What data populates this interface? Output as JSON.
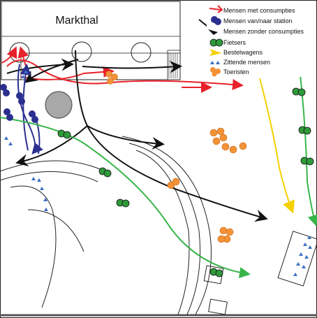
{
  "diagram": {
    "building_label": "Markthal",
    "legend": [
      {
        "key": "consumpties",
        "label": "Mensen met consumpties",
        "color": "#e8222a",
        "icon": "red-arrow-icon"
      },
      {
        "key": "station",
        "label": "Mensen van/naar station",
        "color": "#2b2f8f",
        "icon": "blue-arrow-icon"
      },
      {
        "key": "zonder",
        "label": "Mensen zonder consumpties",
        "color": "#111111",
        "icon": "black-arrow-icon"
      },
      {
        "key": "fietsers",
        "label": "Fietsers",
        "color": "#38b54a",
        "icon": "green-arrow-icon"
      },
      {
        "key": "bestelwagens",
        "label": "Bestelwagens",
        "color": "#f5e100",
        "icon": "yellow-arrow-icon"
      },
      {
        "key": "zittend",
        "label": "Zittende mensen",
        "color": "#3b6fc4",
        "icon": "triangle-icon"
      },
      {
        "key": "toeristen",
        "label": "Toeristen",
        "color": "#f39237",
        "icon": "orange-dot-icon"
      }
    ]
  }
}
